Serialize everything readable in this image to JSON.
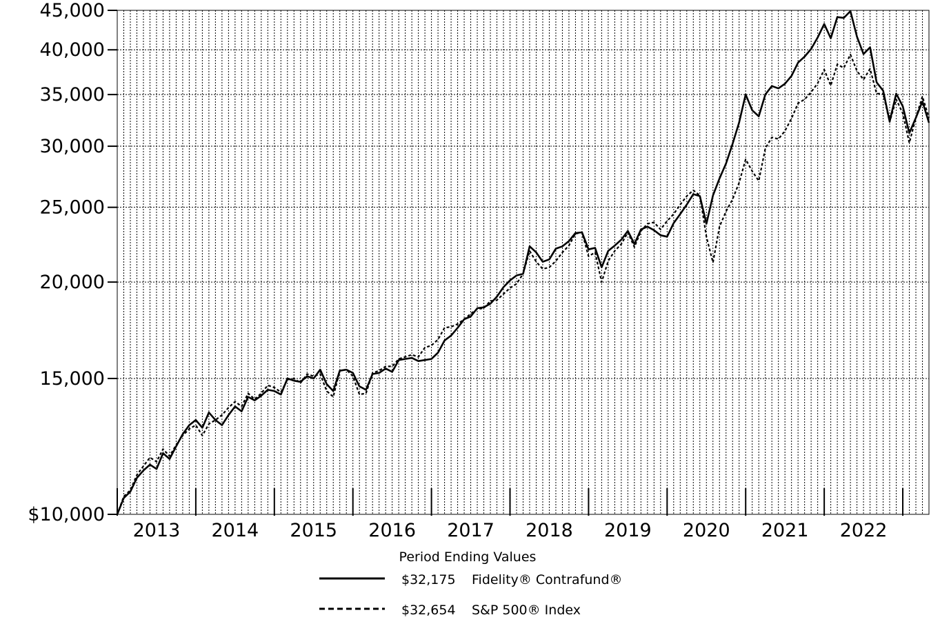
{
  "chart_data": {
    "type": "line",
    "title": "",
    "xlabel": "",
    "ylabel": "",
    "y_scale": "log",
    "ylim": [
      10000,
      45000
    ],
    "y_ticks": [
      {
        "value": 10000,
        "label": "$10,000"
      },
      {
        "value": 15000,
        "label": "15,000"
      },
      {
        "value": 20000,
        "label": "20,000"
      },
      {
        "value": 25000,
        "label": "25,000"
      },
      {
        "value": 30000,
        "label": "30,000"
      },
      {
        "value": 35000,
        "label": "35,000"
      },
      {
        "value": 40000,
        "label": "40,000"
      },
      {
        "value": 45000,
        "label": "45,000"
      }
    ],
    "x_range": [
      "2012-12",
      "2022-12"
    ],
    "x_tick_labels": [
      "2013",
      "2014",
      "2015",
      "2016",
      "2017",
      "2018",
      "2019",
      "2020",
      "2021",
      "2022"
    ],
    "grid": true,
    "grid_style": "dotted",
    "legend_position": "bottom",
    "legend_title": "Period Ending Values",
    "series": [
      {
        "name": "Fidelity® Contrafund®",
        "ending_value": "$32,175",
        "line_style": "solid",
        "color": "#000000",
        "values": [
          10000,
          10500,
          10700,
          11150,
          11400,
          11600,
          11450,
          12000,
          11800,
          12250,
          12700,
          13050,
          13250,
          12950,
          13550,
          13250,
          13050,
          13450,
          13800,
          13600,
          14200,
          14050,
          14250,
          14500,
          14450,
          14300,
          15000,
          14900,
          14850,
          15100,
          15000,
          15400,
          14750,
          14450,
          15350,
          15400,
          15250,
          14650,
          14500,
          15200,
          15250,
          15450,
          15300,
          15850,
          15900,
          15950,
          15800,
          15850,
          15900,
          16200,
          16800,
          17050,
          17450,
          17900,
          18050,
          18500,
          18550,
          18750,
          19150,
          19700,
          20100,
          20400,
          20500,
          22250,
          21850,
          21250,
          21400,
          22100,
          22250,
          22600,
          23150,
          23200,
          22050,
          22150,
          20900,
          21950,
          22300,
          22700,
          23300,
          22400,
          23400,
          23600,
          23350,
          23000,
          22900,
          23850,
          24500,
          25200,
          26000,
          25850,
          23800,
          25900,
          27250,
          28500,
          30200,
          32200,
          35000,
          33400,
          32800,
          35000,
          35900,
          35650,
          36150,
          37000,
          38500,
          39200,
          40100,
          41500,
          43200,
          41400,
          44100,
          44000,
          44900,
          41600,
          39500,
          40300,
          36300,
          35400,
          32300,
          35100,
          33800,
          31200,
          32650,
          34300,
          32175
        ]
      },
      {
        "name": "S&P 500® Index",
        "ending_value": "$32,654",
        "line_style": "dashed",
        "color": "#000000",
        "values": [
          10000,
          10550,
          10750,
          11250,
          11550,
          11850,
          11700,
          12150,
          11900,
          12300,
          12650,
          12900,
          13050,
          12650,
          13100,
          13250,
          13450,
          13750,
          14000,
          13800,
          14350,
          14100,
          14350,
          14700,
          14600,
          14400,
          14950,
          15000,
          14800,
          15200,
          15100,
          15200,
          14450,
          14200,
          15350,
          15400,
          15100,
          14300,
          14350,
          15250,
          15350,
          15550,
          15550,
          15900,
          16000,
          16100,
          16000,
          16450,
          16550,
          16850,
          17450,
          17500,
          17650,
          17900,
          18200,
          18450,
          18500,
          18900,
          18950,
          19300,
          19650,
          19900,
          20500,
          21950,
          21250,
          20800,
          20900,
          21300,
          21850,
          22300,
          23100,
          23200,
          21600,
          21850,
          20000,
          21300,
          21950,
          22400,
          23200,
          22200,
          23300,
          23800,
          23900,
          23400,
          24000,
          24500,
          25200,
          25850,
          26300,
          25900,
          22900,
          21200,
          23600,
          24700,
          25600,
          26900,
          28850,
          27850,
          27050,
          29800,
          30800,
          30650,
          31400,
          32600,
          34100,
          34500,
          35250,
          36200,
          37700,
          35950,
          38300,
          37900,
          39450,
          37550,
          36600,
          37800,
          35100,
          35100,
          32250,
          34500,
          33100,
          30300,
          32650,
          34800,
          32654
        ]
      }
    ]
  }
}
